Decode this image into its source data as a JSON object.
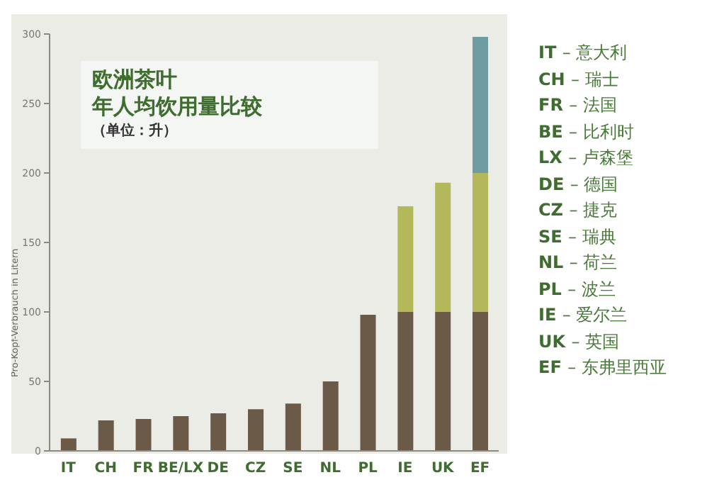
{
  "chart_data": {
    "type": "bar",
    "title": "欧洲茶叶",
    "subtitle": "年人均饮用量比较",
    "ylabel": "Pro-Kopf-Verbrauch in Litern",
    "categories": [
      "IT",
      "CH",
      "FR",
      "BE/LX",
      "DE",
      "CZ",
      "SE",
      "NL",
      "PL",
      "IE",
      "UK",
      "EF"
    ],
    "stacked": true,
    "series": [
      {
        "color": "#6b5a47",
        "values": [
          9,
          22,
          23,
          25,
          27,
          30,
          34,
          50,
          98,
          100,
          100,
          100
        ]
      },
      {
        "color": "#b3b95a",
        "values": [
          null,
          null,
          null,
          null,
          null,
          null,
          null,
          null,
          null,
          76,
          93,
          100
        ]
      },
      {
        "color": "#6f9ca2",
        "values": [
          null,
          null,
          null,
          null,
          null,
          null,
          null,
          null,
          null,
          null,
          null,
          98
        ]
      }
    ],
    "ylim": [
      0,
      300
    ],
    "yticks": [
      0,
      50,
      100,
      150,
      200,
      250,
      300
    ],
    "grid": false,
    "legend": false,
    "annotations": [
      "（单位：升）",
      "IT – 意大利",
      "CH – 瑞士",
      "FR – 法国",
      "BE – 比利时",
      "LX – 卢森堡",
      "DE – 德国",
      "CZ – 捷克",
      "SE – 瑞典",
      "NL – 荷兰",
      "PL – 波兰",
      "IE – 爱尔兰",
      "UK – 英国",
      "EF – 东弗里西亚"
    ]
  }
}
